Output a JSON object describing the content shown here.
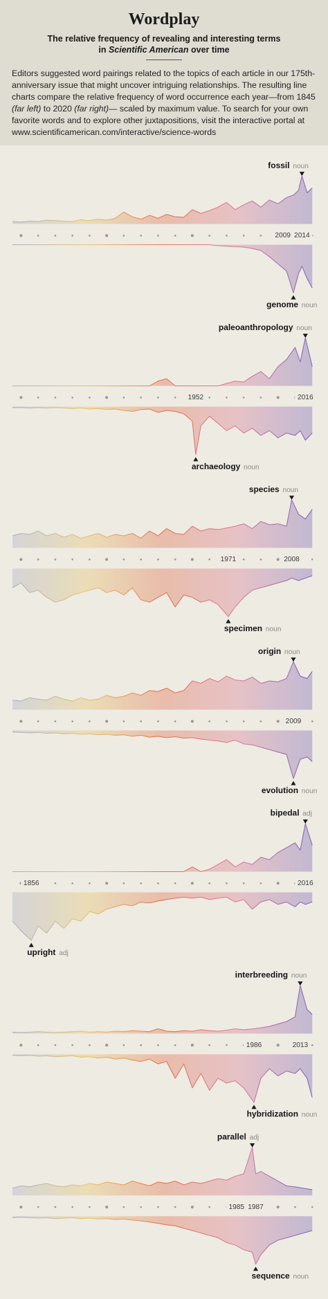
{
  "header": {
    "title": "Wordplay",
    "subtitle": [
      "The relative frequency of revealing and interesting terms",
      "in",
      "Scientific American",
      "over time"
    ],
    "intro": [
      "Editors suggested word pairings related to the topics of each article in our 175th-anniversary issue that might uncover intriguing relationships. The resulting line charts compare the relative frequency of word occurrence each year—from 1845 ",
      "(far left)",
      " to 2020 ",
      "(far right)",
      "— scaled by maximum value. To search for your own favorite words and to explore other juxtapositions, visit the interactive portal at www.scientificamerican.com/interactive/science-words"
    ]
  },
  "chart_data": [
    {
      "type": "mirrored-area",
      "xlim": [
        1845,
        2020
      ],
      "ylim": [
        0,
        100
      ],
      "xticks": [
        1850,
        1860,
        1870,
        1880,
        1890,
        1900,
        1910,
        1920,
        1930,
        1940,
        1950,
        1960,
        1970,
        1980,
        1990,
        2000,
        2010,
        2020
      ],
      "colors": [
        "#aab0c2",
        "#e6c56c",
        "#e0714f",
        "#da7f98",
        "#7a66b8"
      ],
      "marked_years": [
        2009,
        2014
      ],
      "x": [
        1845,
        1850,
        1855,
        1860,
        1865,
        1870,
        1875,
        1880,
        1885,
        1890,
        1895,
        1900,
        1905,
        1910,
        1915,
        1920,
        1925,
        1930,
        1935,
        1940,
        1945,
        1950,
        1955,
        1960,
        1965,
        1970,
        1975,
        1980,
        1985,
        1990,
        1995,
        2000,
        2005,
        2009,
        2012,
        2014,
        2017,
        2020
      ],
      "series": [
        {
          "name": "fossil",
          "pos": "noun",
          "values": [
            5,
            4,
            6,
            5,
            8,
            7,
            6,
            5,
            9,
            7,
            10,
            8,
            12,
            25,
            15,
            10,
            18,
            12,
            20,
            15,
            14,
            30,
            22,
            28,
            35,
            45,
            30,
            40,
            48,
            35,
            50,
            42,
            55,
            60,
            70,
            100,
            65,
            75
          ]
        },
        {
          "name": "genome",
          "pos": "noun",
          "values": [
            0,
            0,
            0,
            0,
            0,
            0,
            0,
            0,
            0,
            0,
            0,
            0,
            0,
            0,
            0,
            0,
            0,
            0,
            0,
            0,
            0,
            0,
            0,
            0,
            2,
            3,
            4,
            5,
            8,
            12,
            25,
            40,
            55,
            100,
            60,
            45,
            70,
            90
          ]
        }
      ]
    },
    {
      "type": "mirrored-area",
      "xlim": [
        1845,
        2020
      ],
      "ylim": [
        0,
        100
      ],
      "xticks": [
        1850,
        1860,
        1870,
        1880,
        1890,
        1900,
        1910,
        1920,
        1930,
        1940,
        1950,
        1960,
        1970,
        1980,
        1990,
        2000,
        2010,
        2020
      ],
      "colors": [
        "#aab0c2",
        "#e6c56c",
        "#e0714f",
        "#da7f98",
        "#7a66b8"
      ],
      "marked_years": [
        1952,
        2016
      ],
      "x": [
        1845,
        1850,
        1855,
        1860,
        1865,
        1870,
        1875,
        1880,
        1885,
        1890,
        1895,
        1900,
        1905,
        1910,
        1915,
        1920,
        1925,
        1930,
        1935,
        1940,
        1945,
        1950,
        1952,
        1955,
        1960,
        1965,
        1970,
        1975,
        1980,
        1985,
        1990,
        1995,
        2000,
        2005,
        2010,
        2013,
        2016,
        2020
      ],
      "series": [
        {
          "name": "paleoanthropology",
          "pos": "noun",
          "values": [
            0,
            0,
            0,
            0,
            0,
            0,
            0,
            0,
            0,
            0,
            0,
            0,
            0,
            0,
            0,
            0,
            0,
            10,
            15,
            0,
            0,
            0,
            0,
            0,
            0,
            0,
            5,
            10,
            8,
            20,
            30,
            15,
            40,
            55,
            80,
            50,
            100,
            40
          ]
        },
        {
          "name": "archaeology",
          "pos": "noun",
          "values": [
            2,
            2,
            3,
            2,
            3,
            2,
            3,
            4,
            3,
            5,
            4,
            6,
            5,
            8,
            10,
            6,
            5,
            12,
            8,
            10,
            15,
            30,
            100,
            40,
            20,
            35,
            50,
            40,
            55,
            45,
            60,
            50,
            65,
            55,
            60,
            50,
            70,
            55
          ]
        }
      ]
    },
    {
      "type": "mirrored-area",
      "xlim": [
        1845,
        2020
      ],
      "ylim": [
        0,
        100
      ],
      "xticks": [
        1850,
        1860,
        1870,
        1880,
        1890,
        1900,
        1910,
        1920,
        1930,
        1940,
        1950,
        1960,
        1970,
        1980,
        1990,
        2000,
        2010,
        2020
      ],
      "colors": [
        "#aab0c2",
        "#e6c56c",
        "#e0714f",
        "#da7f98",
        "#7a66b8"
      ],
      "marked_years": [
        1971,
        2008
      ],
      "x": [
        1845,
        1850,
        1855,
        1860,
        1865,
        1870,
        1875,
        1880,
        1885,
        1890,
        1895,
        1900,
        1905,
        1910,
        1915,
        1920,
        1925,
        1930,
        1935,
        1940,
        1945,
        1950,
        1955,
        1960,
        1965,
        1971,
        1975,
        1980,
        1985,
        1990,
        1995,
        2000,
        2005,
        2008,
        2012,
        2016,
        2020
      ],
      "series": [
        {
          "name": "species",
          "pos": "noun",
          "values": [
            25,
            30,
            28,
            35,
            25,
            30,
            22,
            28,
            20,
            25,
            30,
            22,
            28,
            25,
            30,
            20,
            35,
            25,
            40,
            30,
            28,
            45,
            35,
            40,
            38,
            42,
            45,
            50,
            40,
            55,
            48,
            50,
            45,
            100,
            70,
            60,
            80
          ]
        },
        {
          "name": "specimen",
          "pos": "noun",
          "values": [
            40,
            30,
            50,
            45,
            60,
            70,
            65,
            55,
            50,
            45,
            40,
            50,
            45,
            55,
            40,
            65,
            70,
            60,
            50,
            80,
            55,
            60,
            70,
            65,
            75,
            100,
            80,
            60,
            45,
            40,
            35,
            30,
            25,
            20,
            25,
            20,
            15
          ]
        }
      ]
    },
    {
      "type": "mirrored-area",
      "xlim": [
        1845,
        2020
      ],
      "ylim": [
        0,
        100
      ],
      "xticks": [
        1850,
        1860,
        1870,
        1880,
        1890,
        1900,
        1910,
        1920,
        1930,
        1940,
        1950,
        1960,
        1970,
        1980,
        1990,
        2000,
        2010,
        2020
      ],
      "colors": [
        "#aab0c2",
        "#e6c56c",
        "#e0714f",
        "#da7f98",
        "#7a66b8"
      ],
      "marked_years": [
        2009
      ],
      "x": [
        1845,
        1850,
        1855,
        1860,
        1865,
        1870,
        1875,
        1880,
        1885,
        1890,
        1895,
        1900,
        1905,
        1910,
        1915,
        1920,
        1925,
        1930,
        1935,
        1940,
        1945,
        1950,
        1955,
        1960,
        1965,
        1970,
        1975,
        1980,
        1985,
        1990,
        1995,
        2000,
        2005,
        2009,
        2013,
        2017,
        2020
      ],
      "series": [
        {
          "name": "origin",
          "pos": "noun",
          "values": [
            20,
            18,
            25,
            22,
            20,
            28,
            22,
            18,
            25,
            20,
            22,
            30,
            25,
            28,
            35,
            30,
            40,
            38,
            45,
            35,
            40,
            60,
            55,
            65,
            58,
            70,
            62,
            60,
            68,
            55,
            60,
            58,
            65,
            100,
            70,
            65,
            80
          ]
        },
        {
          "name": "evolution",
          "pos": "noun",
          "values": [
            3,
            4,
            5,
            4,
            6,
            5,
            7,
            6,
            8,
            7,
            9,
            8,
            10,
            9,
            12,
            10,
            14,
            12,
            15,
            13,
            16,
            15,
            18,
            20,
            22,
            25,
            20,
            28,
            30,
            35,
            40,
            45,
            50,
            100,
            60,
            55,
            65
          ]
        }
      ]
    },
    {
      "type": "mirrored-area",
      "xlim": [
        1845,
        2020
      ],
      "ylim": [
        0,
        100
      ],
      "xticks": [
        1850,
        1860,
        1870,
        1880,
        1890,
        1900,
        1910,
        1920,
        1930,
        1940,
        1950,
        1960,
        1970,
        1980,
        1990,
        2000,
        2010,
        2020
      ],
      "colors": [
        "#aab0c2",
        "#e6c56c",
        "#e0714f",
        "#da7f98",
        "#7a66b8"
      ],
      "marked_years": [
        1856,
        2016
      ],
      "x": [
        1845,
        1850,
        1856,
        1860,
        1865,
        1870,
        1875,
        1880,
        1885,
        1890,
        1895,
        1900,
        1905,
        1910,
        1915,
        1920,
        1925,
        1930,
        1935,
        1940,
        1945,
        1950,
        1955,
        1960,
        1965,
        1970,
        1975,
        1980,
        1985,
        1990,
        1995,
        2000,
        2005,
        2010,
        2013,
        2016,
        2020
      ],
      "series": [
        {
          "name": "bipedal",
          "pos": "adj",
          "values": [
            0,
            0,
            0,
            0,
            0,
            0,
            0,
            0,
            0,
            0,
            0,
            0,
            0,
            0,
            0,
            0,
            0,
            0,
            0,
            0,
            0,
            10,
            0,
            5,
            15,
            25,
            10,
            20,
            15,
            30,
            25,
            40,
            50,
            60,
            45,
            100,
            55
          ]
        },
        {
          "name": "upright",
          "pos": "adj",
          "values": [
            60,
            80,
            100,
            70,
            85,
            60,
            75,
            55,
            60,
            40,
            45,
            35,
            30,
            25,
            28,
            20,
            22,
            18,
            15,
            12,
            10,
            12,
            10,
            15,
            12,
            10,
            20,
            15,
            35,
            20,
            15,
            25,
            20,
            30,
            20,
            25,
            20
          ]
        }
      ]
    },
    {
      "type": "mirrored-area",
      "xlim": [
        1845,
        2020
      ],
      "ylim": [
        0,
        100
      ],
      "xticks": [
        1850,
        1860,
        1870,
        1880,
        1890,
        1900,
        1910,
        1920,
        1930,
        1940,
        1950,
        1960,
        1970,
        1980,
        1990,
        2000,
        2010,
        2020
      ],
      "colors": [
        "#aab0c2",
        "#e6c56c",
        "#e0714f",
        "#da7f98",
        "#7a66b8"
      ],
      "marked_years": [
        1986,
        2013
      ],
      "x": [
        1845,
        1850,
        1855,
        1860,
        1865,
        1870,
        1875,
        1880,
        1885,
        1890,
        1895,
        1900,
        1905,
        1910,
        1915,
        1920,
        1925,
        1930,
        1935,
        1940,
        1945,
        1950,
        1955,
        1960,
        1965,
        1970,
        1975,
        1980,
        1986,
        1990,
        1995,
        2000,
        2005,
        2010,
        2013,
        2017,
        2020
      ],
      "series": [
        {
          "name": "interbreeding",
          "pos": "noun",
          "values": [
            3,
            2,
            3,
            4,
            3,
            2,
            3,
            4,
            5,
            3,
            4,
            3,
            5,
            4,
            6,
            5,
            4,
            10,
            5,
            4,
            6,
            5,
            8,
            6,
            5,
            7,
            10,
            8,
            10,
            12,
            15,
            20,
            25,
            35,
            100,
            50,
            40
          ]
        },
        {
          "name": "hybridization",
          "pos": "noun",
          "values": [
            2,
            3,
            2,
            4,
            3,
            5,
            4,
            3,
            6,
            5,
            8,
            6,
            10,
            8,
            12,
            15,
            10,
            20,
            15,
            50,
            20,
            70,
            40,
            75,
            50,
            60,
            55,
            70,
            100,
            50,
            30,
            45,
            35,
            40,
            30,
            50,
            90
          ]
        }
      ]
    },
    {
      "type": "mirrored-area",
      "xlim": [
        1845,
        2020
      ],
      "ylim": [
        0,
        100
      ],
      "xticks": [
        1850,
        1860,
        1870,
        1880,
        1890,
        1900,
        1910,
        1920,
        1930,
        1940,
        1950,
        1960,
        1970,
        1980,
        1990,
        2000,
        2010,
        2020
      ],
      "colors": [
        "#aab0c2",
        "#e6c56c",
        "#e0714f",
        "#da7f98",
        "#7a66b8"
      ],
      "marked_years": [
        1985,
        1987
      ],
      "x": [
        1845,
        1850,
        1855,
        1860,
        1865,
        1870,
        1875,
        1880,
        1885,
        1890,
        1895,
        1900,
        1905,
        1910,
        1915,
        1920,
        1925,
        1930,
        1935,
        1940,
        1945,
        1950,
        1955,
        1960,
        1965,
        1970,
        1975,
        1980,
        1985,
        1987,
        1990,
        1995,
        2000,
        2005,
        2010,
        2015,
        2020
      ],
      "series": [
        {
          "name": "parallel",
          "pos": "adj",
          "values": [
            15,
            20,
            18,
            22,
            25,
            20,
            18,
            22,
            20,
            25,
            22,
            28,
            25,
            22,
            30,
            25,
            20,
            28,
            25,
            30,
            22,
            28,
            25,
            30,
            35,
            32,
            40,
            45,
            100,
            45,
            50,
            40,
            30,
            20,
            18,
            15,
            12
          ]
        },
        {
          "name": "sequence",
          "pos": "noun",
          "values": [
            3,
            2,
            3,
            4,
            3,
            5,
            4,
            3,
            5,
            4,
            6,
            5,
            7,
            6,
            8,
            10,
            12,
            15,
            18,
            20,
            25,
            30,
            35,
            40,
            45,
            55,
            60,
            70,
            75,
            100,
            80,
            60,
            50,
            45,
            40,
            35,
            30
          ]
        }
      ]
    }
  ]
}
